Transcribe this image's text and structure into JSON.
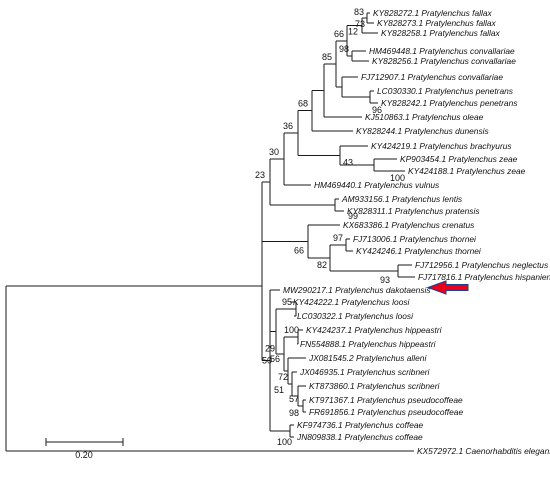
{
  "highlight_color": "#e8001c",
  "arrow_outline_color": "#1f3f8f",
  "taxa": [
    "KY828272.1 Pratylenchus fallax",
    "KY828273.1 Pratylenchus fallax",
    "KY828258.1 Pratylenchus fallax",
    "HM469448.1 Pratylenchus convallariae",
    "KY828256.1 Pratylenchus convallariae",
    "FJ712907.1 Pratylenchus convallariae",
    "LC030330.1 Pratylenchus penetrans",
    "KY828242.1 Pratylenchus penetrans",
    "KJ510863.1 Pratylenchus oleae",
    "KY828244.1 Pratylenchus dunensis",
    "KY424219.1 Pratylenchus brachyurus",
    "KP903454.1 Pratylenchus zeae",
    "KY424188.1 Pratylenchus zeae",
    "HM469440.1 Pratylenchus vulnus",
    "AM933156.1 Pratylenchus lentis",
    "KY828311.1 Pratylenchus pratensis",
    "KX683386.1 Pratylenchus crenatus",
    "FJ713006.1 Pratylenchus thornei",
    "KY424246.1 Pratylenchus thornei",
    "FJ712956.1 Pratylenchus neglectus",
    "FJ717816.1 Pratylenchus hispaniensis",
    "MW290217.1 Pratylenchus dakotaensis",
    "KY424222.1 Pratylenchus loosi",
    "LC030322.1 Pratylenchus loosi",
    "KY424237.1 Pratylenchus hippeastri",
    "FN554888.1 Pratylenchus hippeastri",
    "JX081545.2 Pratylenchus alleni",
    "JX046935.1 Pratylenchus scribneri",
    "KT873860.1 Pratylenchus scribneri",
    "KT971367.1 Pratylenchus pseudocoffeae",
    "FR691856.1 Pratylenchus pseudocoffeae",
    "KF974736.1 Pratylenchus coffeae",
    "JN809838.1 Pratylenchus coffeae",
    "KX572972.1 Caenorhabditis elegans"
  ],
  "bootstrap": [
    "83",
    "73",
    "12",
    "98",
    "96",
    "66",
    "85",
    "68",
    "43",
    "100",
    "36",
    "30",
    "99",
    "23",
    "97",
    "82",
    "93",
    "66",
    "95",
    "50",
    "100",
    "29",
    "56",
    "72",
    "57",
    "98",
    "51",
    "100"
  ],
  "scale_bar": {
    "label": "0.20"
  }
}
